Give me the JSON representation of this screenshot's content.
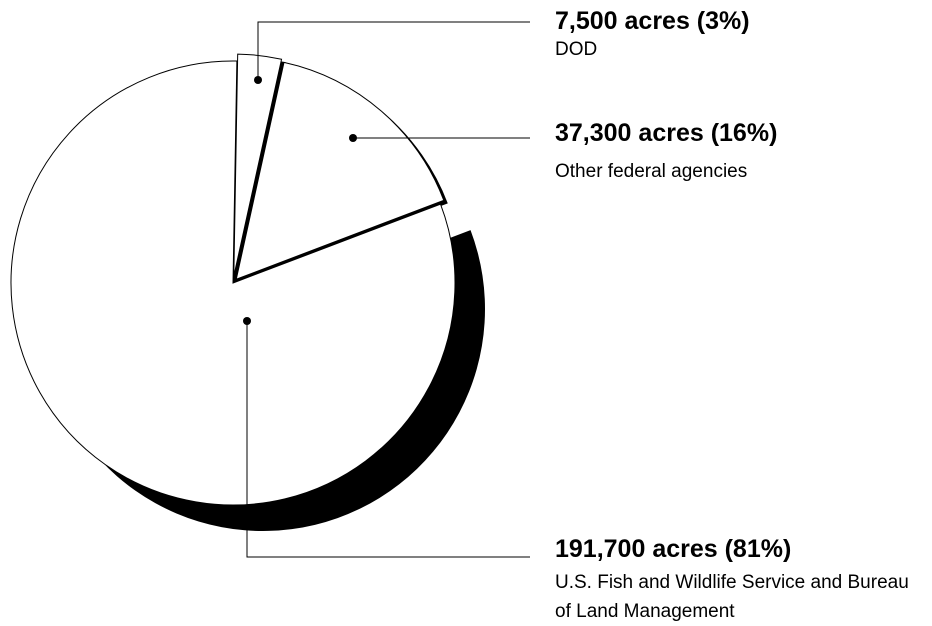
{
  "chart_data": {
    "type": "pie",
    "categories": [
      "DOD",
      "Other federal agencies",
      "U.S. Fish and Wildlife Service and Bureau of Land Management"
    ],
    "values": [
      7500,
      37300,
      191700
    ],
    "value_labels": [
      "7,500 acres (3%)",
      "37,300 acres (16%)",
      "191,700 acres (81%)"
    ],
    "color": "#ffffff"
  }
}
